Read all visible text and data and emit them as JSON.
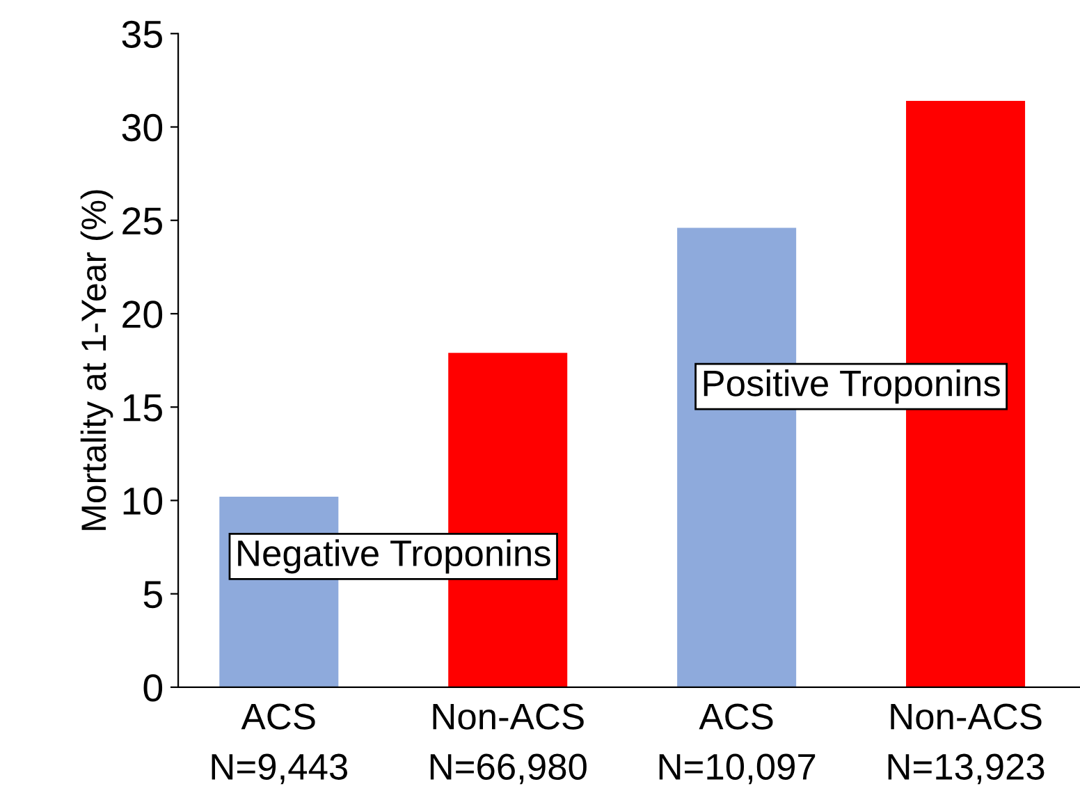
{
  "chart_data": {
    "type": "bar",
    "ylabel": "Mortality at 1-Year (%)",
    "categories": [
      "ACS\nN=9,443",
      "Non-ACS\nN=66,980",
      "ACS\nN=10,097",
      "Non-ACS\nN=13,923"
    ],
    "values": [
      10.2,
      17.9,
      24.6,
      31.4
    ],
    "colors": [
      "#8eaadc",
      "#ff0000",
      "#8eaadc",
      "#ff0000"
    ],
    "ylim": [
      0,
      35
    ],
    "yticks": [
      0,
      5,
      10,
      15,
      20,
      25,
      30,
      35
    ],
    "grid": false,
    "annotations": [
      "Negative Troponins",
      "Positive Troponins"
    ]
  }
}
